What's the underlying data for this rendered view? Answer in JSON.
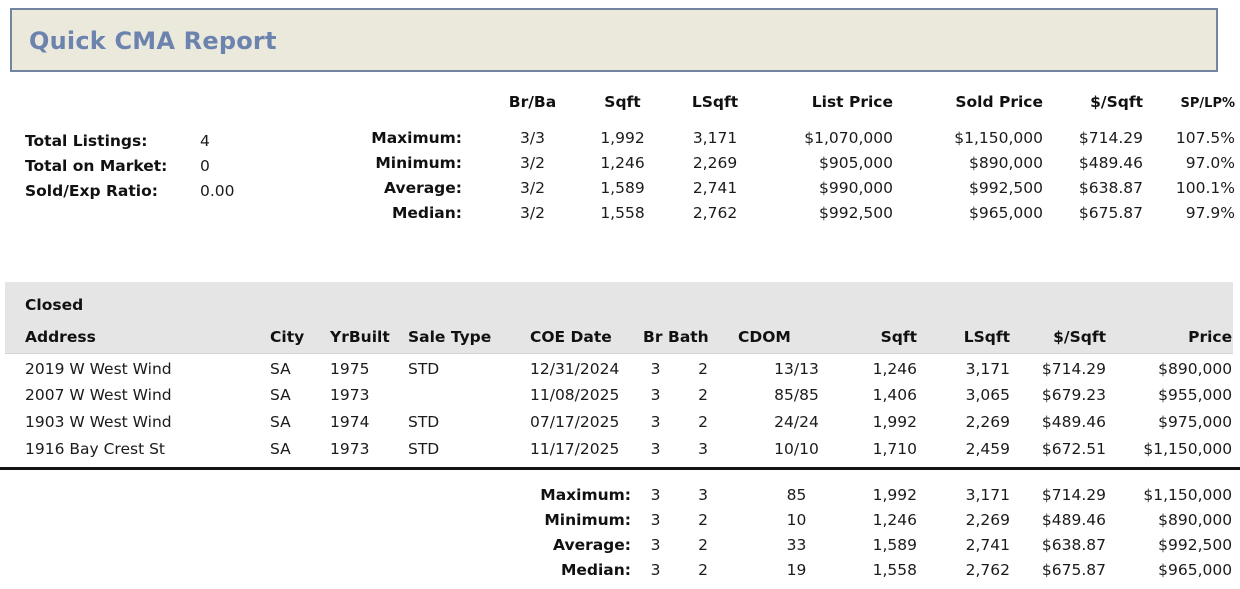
{
  "report": {
    "title": "Quick CMA Report"
  },
  "stats": {
    "items": [
      {
        "label": "Total Listings:",
        "value": "4"
      },
      {
        "label": "Total on Market:",
        "value": "0"
      },
      {
        "label": "Sold/Exp Ratio:",
        "value": "0.00"
      }
    ]
  },
  "summary": {
    "columns": [
      "Br/Ba",
      "Sqft",
      "LSqft",
      "List Price",
      "Sold Price",
      "$/Sqft",
      "SP/LP%"
    ],
    "rows": [
      {
        "label": "Maximum:",
        "br_ba": "3/3",
        "sqft": "1,992",
        "lsqft": "3,171",
        "list_price": "$1,070,000",
        "sold_price": "$1,150,000",
        "price_sqft": "$714.29",
        "sp_lp": "107.5%"
      },
      {
        "label": "Minimum:",
        "br_ba": "3/2",
        "sqft": "1,246",
        "lsqft": "2,269",
        "list_price": "$905,000",
        "sold_price": "$890,000",
        "price_sqft": "$489.46",
        "sp_lp": "97.0%"
      },
      {
        "label": "Average:",
        "br_ba": "3/2",
        "sqft": "1,589",
        "lsqft": "2,741",
        "list_price": "$990,000",
        "sold_price": "$992,500",
        "price_sqft": "$638.87",
        "sp_lp": "100.1%"
      },
      {
        "label": "Median:",
        "br_ba": "3/2",
        "sqft": "1,558",
        "lsqft": "2,762",
        "list_price": "$992,500",
        "sold_price": "$965,000",
        "price_sqft": "$675.87",
        "sp_lp": "97.9%"
      }
    ]
  },
  "closed": {
    "section_title": "Closed",
    "columns": [
      "Address",
      "City",
      "YrBuilt",
      "Sale Type",
      "COE Date",
      "Br",
      "Bath",
      "CDOM",
      "Sqft",
      "LSqft",
      "$/Sqft",
      "Price"
    ],
    "rows": [
      {
        "address": "2019 W West Wind",
        "city": "SA",
        "yr_built": "1975",
        "sale_type": "STD",
        "coe_date": "12/31/2024",
        "br": "3",
        "bath": "2",
        "cdom": "13/13",
        "sqft": "1,246",
        "lsqft": "3,171",
        "price_sqft": "$714.29",
        "price": "$890,000"
      },
      {
        "address": "2007 W West Wind",
        "city": "SA",
        "yr_built": "1973",
        "sale_type": "",
        "coe_date": "11/08/2025",
        "br": "3",
        "bath": "2",
        "cdom": "85/85",
        "sqft": "1,406",
        "lsqft": "3,065",
        "price_sqft": "$679.23",
        "price": "$955,000"
      },
      {
        "address": "1903 W West Wind",
        "city": "SA",
        "yr_built": "1974",
        "sale_type": "STD",
        "coe_date": "07/17/2025",
        "br": "3",
        "bath": "2",
        "cdom": "24/24",
        "sqft": "1,992",
        "lsqft": "2,269",
        "price_sqft": "$489.46",
        "price": "$975,000"
      },
      {
        "address": "1916 Bay Crest St",
        "city": "SA",
        "yr_built": "1973",
        "sale_type": "STD",
        "coe_date": "11/17/2025",
        "br": "3",
        "bath": "3",
        "cdom": "10/10",
        "sqft": "1,710",
        "lsqft": "2,459",
        "price_sqft": "$672.51",
        "price": "$1,150,000"
      }
    ],
    "totals": [
      {
        "label": "Maximum:",
        "br": "3",
        "bath": "3",
        "cdom": "85",
        "sqft": "1,992",
        "lsqft": "3,171",
        "price_sqft": "$714.29",
        "price": "$1,150,000"
      },
      {
        "label": "Minimum:",
        "br": "3",
        "bath": "2",
        "cdom": "10",
        "sqft": "1,246",
        "lsqft": "2,269",
        "price_sqft": "$489.46",
        "price": "$890,000"
      },
      {
        "label": "Average:",
        "br": "3",
        "bath": "2",
        "cdom": "33",
        "sqft": "1,589",
        "lsqft": "2,741",
        "price_sqft": "$638.87",
        "price": "$992,500"
      },
      {
        "label": "Median:",
        "br": "3",
        "bath": "2",
        "cdom": "19",
        "sqft": "1,558",
        "lsqft": "2,762",
        "price_sqft": "$675.87",
        "price": "$965,000"
      }
    ]
  },
  "colors": {
    "banner_bg": "#ebe9dc",
    "banner_border": "#72849f",
    "title_text": "#6b83ae",
    "section_band": "#e5e5e5",
    "body_text": "#1b1b1b"
  }
}
